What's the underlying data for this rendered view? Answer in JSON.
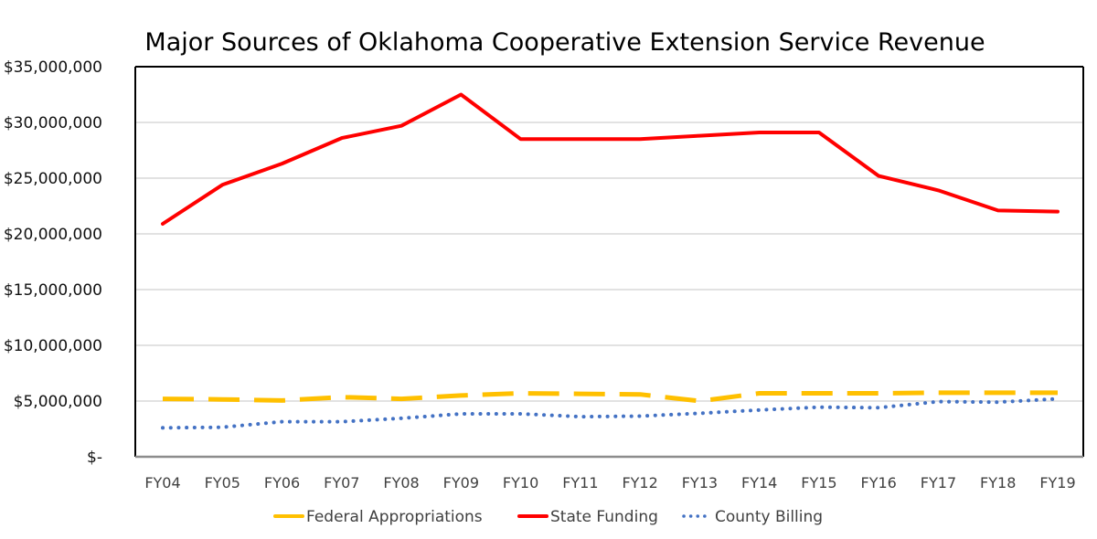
{
  "chart_data": {
    "type": "line",
    "title": "Major Sources of Oklahoma Cooperative Extension Service Revenue",
    "xlabel": "",
    "ylabel": "",
    "ylim": [
      0,
      35000000
    ],
    "yticks": [
      0,
      5000000,
      10000000,
      15000000,
      20000000,
      25000000,
      30000000,
      35000000
    ],
    "ytick_labels": [
      "$-",
      "$5,000,000",
      "$10,000,000",
      "$15,000,000",
      "$20,000,000",
      "$25,000,000",
      "$30,000,000",
      "$35,000,000"
    ],
    "categories": [
      "FY04",
      "FY05",
      "FY06",
      "FY07",
      "FY08",
      "FY09",
      "FY10",
      "FY11",
      "FY12",
      "FY13",
      "FY14",
      "FY15",
      "FY16",
      "FY17",
      "FY18",
      "FY19"
    ],
    "grid": true,
    "legend_position": "bottom",
    "series": [
      {
        "name": "Federal Appropriations",
        "color": "#FFC000",
        "style": "dashed",
        "values": [
          5200000,
          5150000,
          5050000,
          5350000,
          5200000,
          5500000,
          5700000,
          5650000,
          5600000,
          5000000,
          5700000,
          5700000,
          5700000,
          5750000,
          5750000,
          5750000
        ]
      },
      {
        "name": "State Funding",
        "color": "#FF0000",
        "style": "solid",
        "values": [
          20900000,
          24400000,
          26300000,
          28600000,
          29700000,
          32500000,
          28500000,
          28500000,
          28500000,
          28800000,
          29100000,
          29100000,
          25200000,
          23900000,
          22100000,
          22000000
        ]
      },
      {
        "name": "County Billing",
        "color": "#4472C4",
        "style": "dotted",
        "values": [
          2600000,
          2650000,
          3150000,
          3150000,
          3450000,
          3850000,
          3850000,
          3600000,
          3650000,
          3900000,
          4200000,
          4450000,
          4400000,
          4950000,
          4900000,
          5200000
        ]
      }
    ]
  }
}
